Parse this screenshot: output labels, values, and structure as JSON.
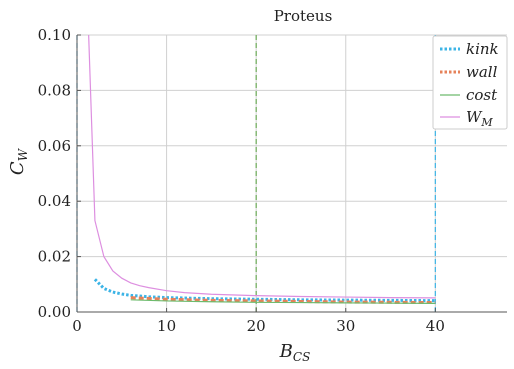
{
  "chart_data": {
    "type": "line",
    "title": "Proteus",
    "xlabel": "B",
    "xlabel_sub": "CS",
    "ylabel": "C",
    "ylabel_sub": "W",
    "xlim": [
      0,
      48
    ],
    "ylim": [
      0,
      0.1
    ],
    "xticks": [
      0,
      10,
      20,
      30,
      40
    ],
    "xtick_labels": [
      "0",
      "10",
      "20",
      "30",
      "40"
    ],
    "yticks": [
      0,
      0.02,
      0.04,
      0.06,
      0.08,
      0.1
    ],
    "ytick_labels": [
      "0.00",
      "0.02",
      "0.04",
      "0.06",
      "0.08",
      "0.10"
    ],
    "grid": true,
    "legend_position": "top-right",
    "series": [
      {
        "name": "kink",
        "color": "#3cb4e6",
        "style": "dotted",
        "x": [
          2,
          3,
          4,
          5,
          6,
          8,
          10,
          15,
          20,
          25,
          30,
          35,
          40
        ],
        "y": [
          0.0118,
          0.0085,
          0.0072,
          0.0065,
          0.006,
          0.0055,
          0.0052,
          0.0048,
          0.0046,
          0.0044,
          0.0043,
          0.0042,
          0.0041
        ]
      },
      {
        "name": "wall",
        "color": "#e6825a",
        "style": "dashed",
        "x": [
          6,
          10,
          15,
          20,
          25,
          30,
          35,
          40
        ],
        "y": [
          0.0052,
          0.0046,
          0.0042,
          0.004,
          0.0038,
          0.0036,
          0.0035,
          0.0034
        ]
      },
      {
        "name": "cost",
        "color": "#6dbb6d",
        "style": "solid",
        "x": [
          6,
          10,
          15,
          20,
          25,
          30,
          35,
          40
        ],
        "y": [
          0.0044,
          0.004,
          0.0037,
          0.0035,
          0.0034,
          0.0033,
          0.0032,
          0.0031
        ]
      },
      {
        "name": "W",
        "name_sub": "M",
        "color": "#dd8fe0",
        "style": "solid",
        "x": [
          1.3,
          2,
          3,
          4,
          5,
          6,
          7,
          8,
          10,
          12,
          15,
          20,
          25,
          30,
          35,
          40
        ],
        "y": [
          0.1,
          0.033,
          0.02,
          0.0148,
          0.0122,
          0.0105,
          0.0095,
          0.0088,
          0.0077,
          0.007,
          0.0064,
          0.0059,
          0.0056,
          0.0054,
          0.0052,
          0.0051
        ]
      }
    ],
    "vertical_lines": [
      {
        "x": 0,
        "color": "#3cb4e6",
        "style": "dashed"
      },
      {
        "x": 20,
        "color": "#e6825a",
        "style": "dashed"
      },
      {
        "x": 20,
        "color": "#6dbb6d",
        "style": "dashed"
      },
      {
        "x": 40,
        "color": "#3cb4e6",
        "style": "dashed"
      }
    ]
  }
}
